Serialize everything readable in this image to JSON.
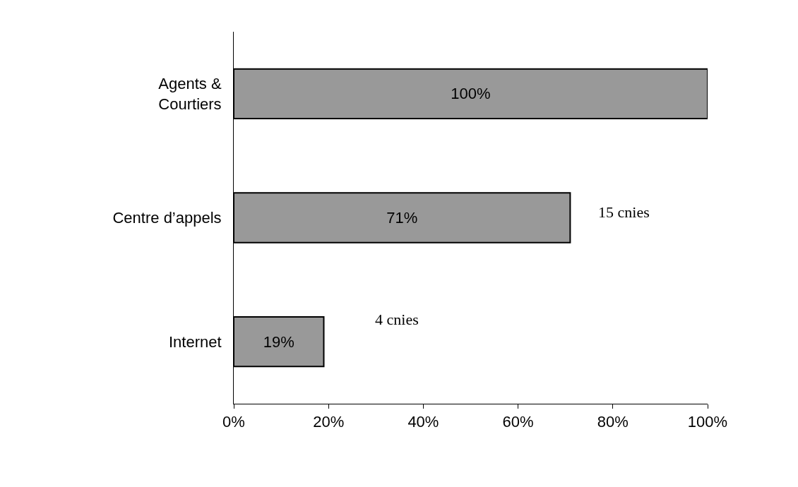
{
  "chart_data": {
    "type": "bar",
    "orientation": "horizontal",
    "categories": [
      "Agents &\nCourtiers",
      "Centre d’appels",
      "Internet"
    ],
    "values": [
      100,
      71,
      19
    ],
    "value_labels": [
      "100%",
      "71%",
      "19%"
    ],
    "color": "#999999",
    "xlim": [
      0,
      100
    ],
    "xticks": [
      {
        "value": 0,
        "label": "0%"
      },
      {
        "value": 20,
        "label": "20%"
      },
      {
        "value": 40,
        "label": "40%"
      },
      {
        "value": 60,
        "label": "60%"
      },
      {
        "value": 80,
        "label": "80%"
      },
      {
        "value": 100,
        "label": "100%"
      }
    ],
    "legend": false,
    "annotations": [
      "15 cnies",
      "4 cnies"
    ]
  }
}
